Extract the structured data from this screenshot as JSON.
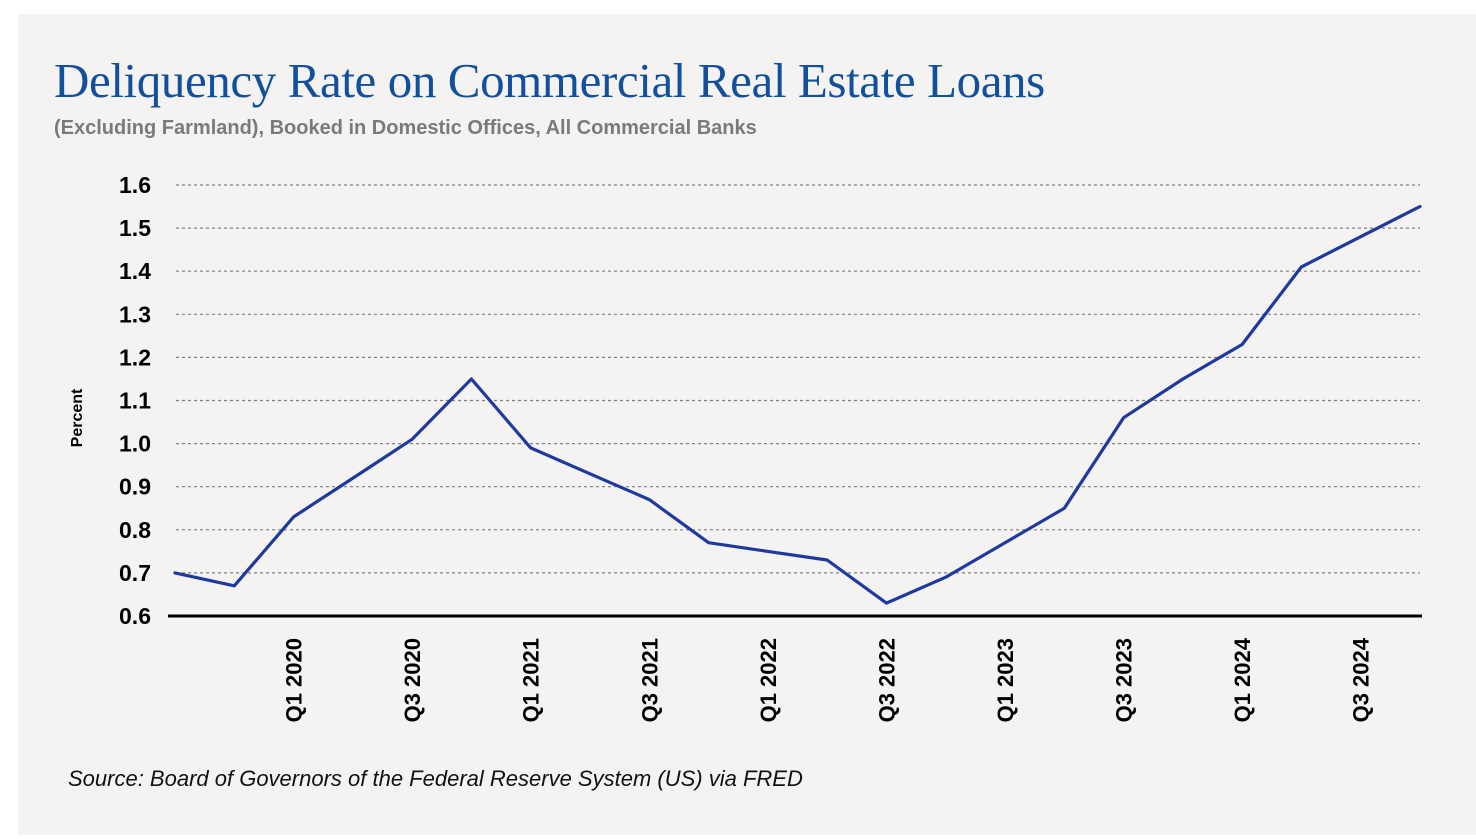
{
  "colors": {
    "title": "#12509b",
    "subtitle": "#7a7a7a",
    "line": "#1f3a9e",
    "grid": "#808080",
    "axis": "#000000"
  },
  "source": "Source: Board of Governors of the Federal Reserve System (US) via FRED",
  "chart_data": {
    "type": "line",
    "title": "Deliquency Rate on Commercial Real Estate Loans",
    "subtitle": "(Excluding Farmland), Booked in Domestic Offices, All Commercial Banks",
    "xlabel": "",
    "ylabel": "Percent",
    "ylim": [
      0.6,
      1.6
    ],
    "yticks": [
      0.6,
      0.7,
      0.8,
      0.9,
      1.0,
      1.1,
      1.2,
      1.3,
      1.4,
      1.5,
      1.6
    ],
    "ytick_labels": [
      "0.6",
      "0.7",
      "0.8",
      "0.9",
      "1.0",
      "1.1",
      "1.2",
      "1.3",
      "1.4",
      "1.5",
      "1.6"
    ],
    "grid": true,
    "x": [
      "Q3 2019",
      "Q4 2019",
      "Q1 2020",
      "Q2 2020",
      "Q3 2020",
      "Q4 2020",
      "Q1 2021",
      "Q2 2021",
      "Q3 2021",
      "Q4 2021",
      "Q1 2022",
      "Q2 2022",
      "Q3 2022",
      "Q4 2022",
      "Q1 2023",
      "Q2 2023",
      "Q3 2023",
      "Q4 2023",
      "Q1 2024",
      "Q2 2024",
      "Q3 2024",
      "Q4 2024"
    ],
    "xtick_labels": [
      "Q1 2020",
      "Q3 2020",
      "Q1 2021",
      "Q3 2021",
      "Q1 2022",
      "Q3 2022",
      "Q1 2023",
      "Q3 2023",
      "Q1 2024",
      "Q3 2024"
    ],
    "series": [
      {
        "values": [
          0.7,
          0.67,
          0.83,
          0.92,
          1.01,
          1.15,
          0.99,
          0.93,
          0.87,
          0.77,
          0.75,
          0.73,
          0.63,
          0.69,
          0.77,
          0.85,
          1.06,
          1.15,
          1.23,
          1.41,
          1.48,
          1.55
        ]
      }
    ]
  }
}
